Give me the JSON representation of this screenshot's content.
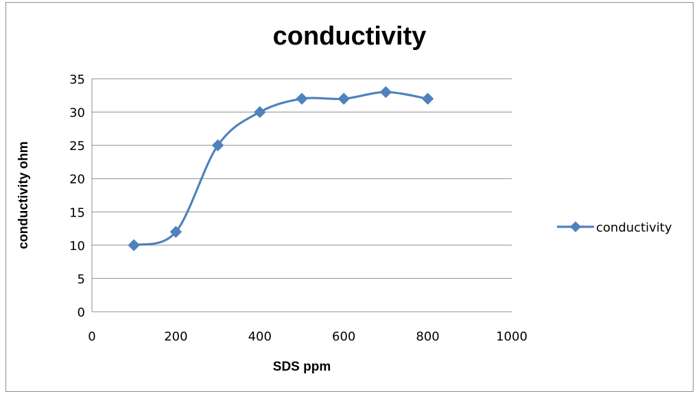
{
  "chart_data": {
    "type": "scatter",
    "title": "conductivity",
    "xlabel": "SDS ppm",
    "ylabel": "conductivity ohm",
    "xlim": [
      0,
      1000
    ],
    "ylim": [
      0,
      35
    ],
    "x_ticks": [
      0,
      200,
      400,
      600,
      800,
      1000
    ],
    "y_ticks": [
      0,
      5,
      10,
      15,
      20,
      25,
      30,
      35
    ],
    "grid": "horizontal",
    "smooth_line": true,
    "marker": "diamond",
    "legend_position": "right",
    "series": [
      {
        "name": "conductivity",
        "color": "#4f81bd",
        "x": [
          100,
          200,
          300,
          400,
          500,
          600,
          700,
          800
        ],
        "y": [
          10,
          12,
          25,
          30,
          32,
          32,
          33,
          32
        ]
      }
    ]
  }
}
